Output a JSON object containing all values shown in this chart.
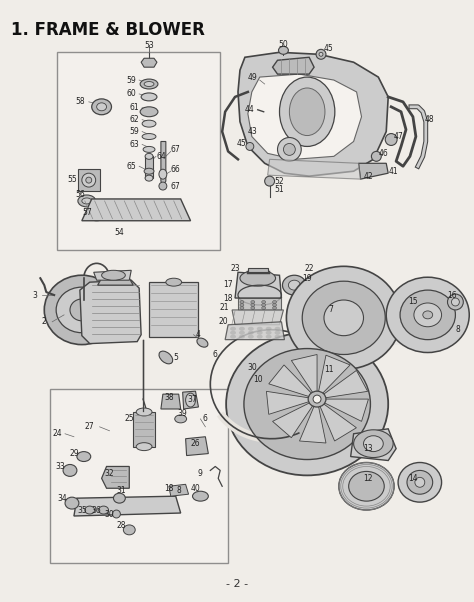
{
  "title": "1. FRAME & BLOWER",
  "page_number": "- 2 -",
  "background_color": "#f0ede8",
  "title_fontsize": 12,
  "figsize": [
    4.74,
    6.02
  ],
  "dpi": 100
}
